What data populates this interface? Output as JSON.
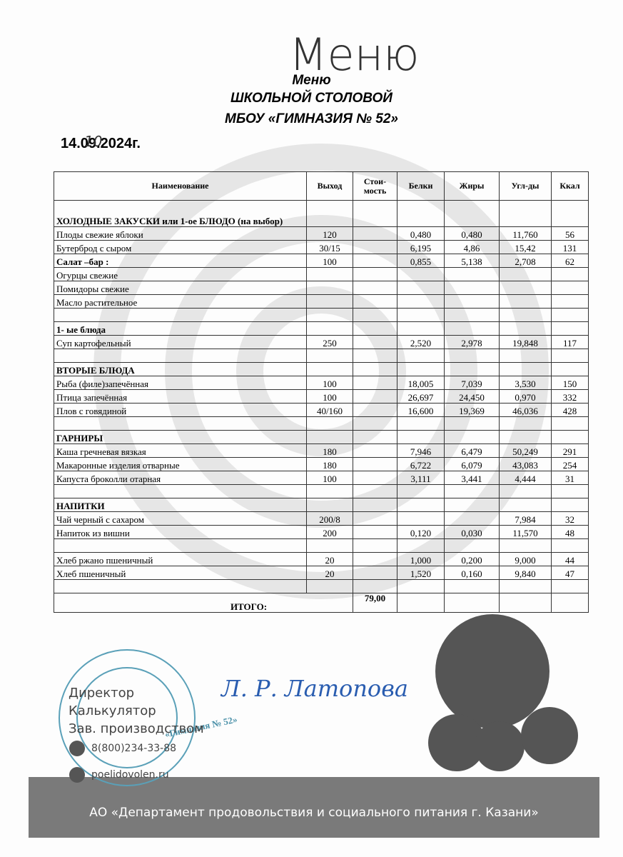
{
  "handwritten_title": "Меню",
  "header": {
    "title": "Меню",
    "subtitle": "ШКОЛЬНОЙ СТОЛОВОЙ",
    "school": "МБОУ «ГИМНАЗИЯ № 52»"
  },
  "date": {
    "printed": "14.09.2024г.",
    "handwritten_correction": "10"
  },
  "table": {
    "columns": [
      "Наименование",
      "Выход",
      "Стои-мость",
      "Белки",
      "Жиры",
      "Угл-ды",
      "Ккал"
    ],
    "rows": [
      {
        "bold": true,
        "cells": [
          "ХОЛОДНЫЕ ЗАКУСКИ или 1-ое БЛЮДО (на выбор)",
          null,
          null,
          null,
          null,
          null,
          null
        ]
      },
      {
        "bold": false,
        "cells": [
          "Плоды свежие яблоки",
          "120",
          null,
          "0,480",
          "0,480",
          "11,760",
          "56"
        ]
      },
      {
        "bold": false,
        "cells": [
          "Бутерброд с сыром",
          "30/15",
          null,
          "6,195",
          "4,86",
          "15,42",
          "131"
        ]
      },
      {
        "bold": true,
        "cells": [
          "Салат –бар :",
          "100",
          null,
          "0,855",
          "5,138",
          "2,708",
          "62"
        ]
      },
      {
        "bold": false,
        "cells": [
          "Огурцы свежие",
          null,
          null,
          null,
          null,
          null,
          null
        ]
      },
      {
        "bold": false,
        "cells": [
          "Помидоры свежие",
          null,
          null,
          null,
          null,
          null,
          null
        ]
      },
      {
        "bold": false,
        "cells": [
          "Масло растительное",
          null,
          null,
          null,
          null,
          null,
          null
        ]
      },
      {
        "bold": false,
        "cells": [
          null,
          null,
          null,
          null,
          null,
          null,
          null
        ]
      },
      {
        "bold": true,
        "cells": [
          "1-   ые блюда",
          null,
          null,
          null,
          null,
          null,
          null
        ]
      },
      {
        "bold": false,
        "cells": [
          "Суп картофельный",
          "250",
          null,
          "2,520",
          "2,978",
          "19,848",
          "117"
        ]
      },
      {
        "bold": false,
        "cells": [
          null,
          null,
          null,
          null,
          null,
          null,
          null
        ]
      },
      {
        "bold": true,
        "cells": [
          "ВТОРЫЕ БЛЮДА",
          null,
          null,
          null,
          null,
          null,
          null
        ]
      },
      {
        "bold": false,
        "cells": [
          "Рыба (филе)запечённая",
          "100",
          null,
          "18,005",
          "7,039",
          "3,530",
          "150"
        ]
      },
      {
        "bold": false,
        "cells": [
          "Птица запечённая",
          "100",
          null,
          "26,697",
          "24,450",
          "0,970",
          "332"
        ]
      },
      {
        "bold": false,
        "cells": [
          "Плов с говядиной",
          "40/160",
          null,
          "16,600",
          "19,369",
          "46,036",
          "428"
        ]
      },
      {
        "bold": false,
        "cells": [
          null,
          null,
          null,
          null,
          null,
          null,
          null
        ]
      },
      {
        "bold": true,
        "cells": [
          "ГАРНИРЫ",
          null,
          null,
          null,
          null,
          null,
          null
        ]
      },
      {
        "bold": false,
        "cells": [
          "Каша гречневая вязкая",
          "180",
          null,
          "7,946",
          "6,479",
          "50,249",
          "291"
        ]
      },
      {
        "bold": false,
        "cells": [
          "Макаронные изделия отварные",
          "180",
          null,
          "6,722",
          "6,079",
          "43,083",
          "254"
        ]
      },
      {
        "bold": false,
        "cells": [
          "Капуста броколли отарная",
          "100",
          null,
          "3,111",
          "3,441",
          "4,444",
          "31"
        ]
      },
      {
        "bold": false,
        "cells": [
          null,
          null,
          null,
          null,
          null,
          null,
          null
        ]
      },
      {
        "bold": true,
        "cells": [
          "НАПИТКИ",
          null,
          null,
          null,
          null,
          null,
          null
        ]
      },
      {
        "bold": false,
        "cells": [
          "Чай черный с сахаром",
          "200/8",
          null,
          null,
          null,
          "7,984",
          "32"
        ]
      },
      {
        "bold": false,
        "cells": [
          "Напиток из вишни",
          "200",
          null,
          "0,120",
          "0,030",
          "11,570",
          "48"
        ]
      },
      {
        "bold": false,
        "cells": [
          null,
          null,
          null,
          null,
          null,
          null,
          null
        ]
      },
      {
        "bold": false,
        "cells": [
          "Хлеб ржано пшеничный",
          "20",
          null,
          "1,000",
          "0,200",
          "9,000",
          "44"
        ]
      },
      {
        "bold": false,
        "cells": [
          "Хлеб пшеничный",
          "20",
          null,
          "1,520",
          "0,160",
          "9,840",
          "47"
        ]
      },
      {
        "bold": false,
        "cells": [
          null,
          null,
          null,
          null,
          null,
          null,
          null
        ]
      }
    ],
    "total": {
      "label": "ИТОГО:",
      "cost": "79,00"
    }
  },
  "signatures": {
    "roles": [
      "Директор",
      "Калькулятор",
      "Зав. производством"
    ],
    "name": "Л. Р. Латопова",
    "stamp": "«Гимназия № 52»"
  },
  "contacts": {
    "phone": "8(800)234-33-88",
    "website": "poelidovolen.ru"
  },
  "footer": "АО «Департамент продовольствия и социального питания г. Казани»"
}
